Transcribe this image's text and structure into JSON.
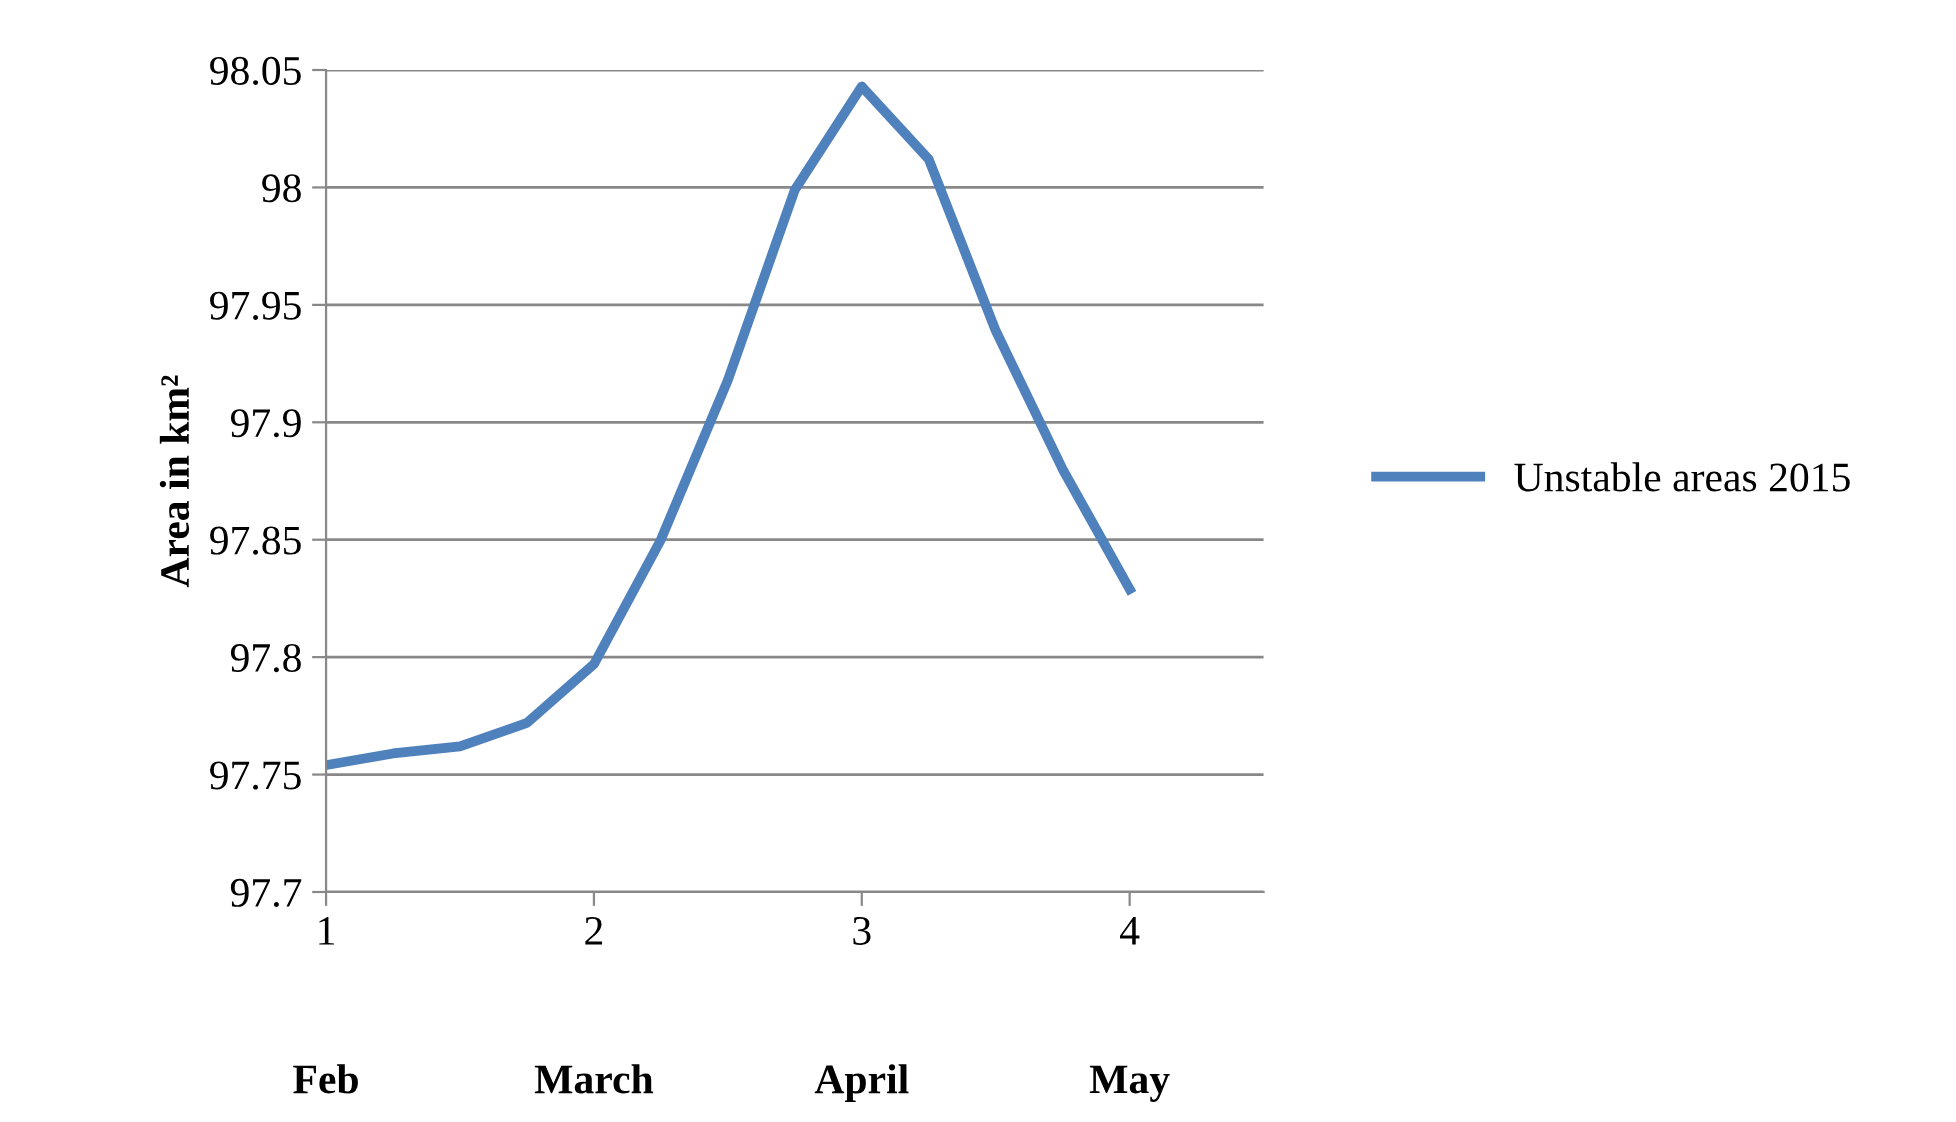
{
  "chart_data": {
    "type": "line",
    "ylabel": "Area in km²",
    "x": [
      1,
      1.25,
      1.5,
      1.75,
      2,
      2.25,
      2.5,
      2.75,
      3,
      3.25,
      3.5,
      3.75,
      4
    ],
    "series": [
      {
        "name": "Unstable areas 2015",
        "color": "#4f81bd",
        "values": [
          97.754,
          97.759,
          97.762,
          97.772,
          97.797,
          97.85,
          97.918,
          97.999,
          98.043,
          98.012,
          97.939,
          97.88,
          97.829
        ]
      }
    ],
    "xlim": [
      1,
      4.5
    ],
    "xticks": [
      1,
      2,
      3,
      4
    ],
    "ylim": [
      97.7,
      98.05
    ],
    "yticks": [
      97.7,
      97.75,
      97.8,
      97.85,
      97.9,
      97.95,
      98,
      98.05
    ],
    "annotations": [
      "Feb",
      "March",
      "April",
      "May"
    ],
    "grid": "y",
    "legend": "right",
    "marker": "none",
    "line_style": "solid"
  }
}
